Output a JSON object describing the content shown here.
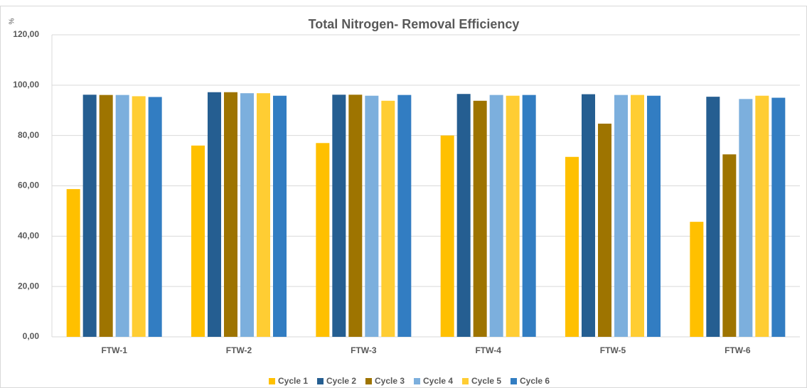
{
  "chart_data": {
    "type": "bar",
    "title": "Total Nitrogen- Removal Efficiency",
    "y_label": "%",
    "categories": [
      "FTW-1",
      "FTW-2",
      "FTW-3",
      "FTW-4",
      "FTW-5",
      "FTW-6"
    ],
    "series": [
      {
        "name": "Cycle 1",
        "color": "#ffc000",
        "values": [
          58.7,
          76,
          77,
          80,
          71.5,
          45.7
        ]
      },
      {
        "name": "Cycle 2",
        "color": "#255e91",
        "values": [
          96.2,
          97.2,
          96.2,
          96.5,
          96.4,
          95.4
        ]
      },
      {
        "name": "Cycle 3",
        "color": "#9e7400",
        "values": [
          96.1,
          97.2,
          96.2,
          93.8,
          84.7,
          72.5
        ]
      },
      {
        "name": "Cycle 4",
        "color": "#7cafdd",
        "values": [
          96.1,
          96.8,
          95.8,
          96.1,
          96.1,
          94.5
        ]
      },
      {
        "name": "Cycle 5",
        "color": "#ffcd33",
        "values": [
          95.6,
          96.8,
          93.8,
          95.8,
          96.1,
          95.8
        ]
      },
      {
        "name": "Cycle 6",
        "color": "#327dc2",
        "values": [
          95.3,
          95.8,
          96.1,
          96.1,
          95.8,
          95.0
        ]
      }
    ],
    "ylim": [
      0,
      120
    ],
    "yticks": [
      {
        "value": 0,
        "label": "0,00"
      },
      {
        "value": 20,
        "label": "20,00"
      },
      {
        "value": 40,
        "label": "40,00"
      },
      {
        "value": 60,
        "label": "60,00"
      },
      {
        "value": 80,
        "label": "80,00"
      },
      {
        "value": 100,
        "label": "100,00"
      },
      {
        "value": 120,
        "label": "120,00"
      }
    ],
    "grid": true,
    "legend": "bottom"
  }
}
